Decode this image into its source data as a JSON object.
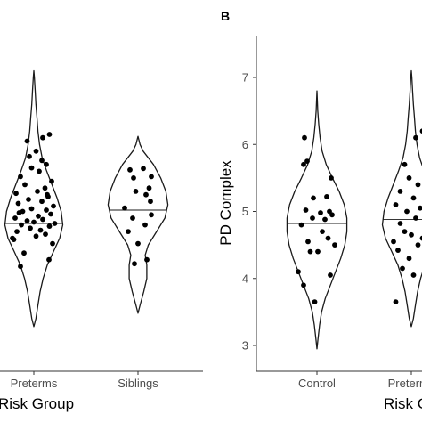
{
  "chart_data": [
    {
      "type": "violin",
      "panel_label": "",
      "xlabel": "Risk Group",
      "ylabel": "",
      "ylim": [
        2.7,
        7.6
      ],
      "categories": [
        "Preterms",
        "Siblings"
      ],
      "medians": [
        4.82,
        5.02
      ],
      "violins": [
        {
          "name": "Preterms",
          "density": [
            [
              3.28,
              0.0
            ],
            [
              3.4,
              0.04
            ],
            [
              3.6,
              0.08
            ],
            [
              3.8,
              0.12
            ],
            [
              4.0,
              0.18
            ],
            [
              4.2,
              0.26
            ],
            [
              4.4,
              0.38
            ],
            [
              4.6,
              0.5
            ],
            [
              4.8,
              0.56
            ],
            [
              5.0,
              0.53
            ],
            [
              5.2,
              0.45
            ],
            [
              5.4,
              0.35
            ],
            [
              5.6,
              0.25
            ],
            [
              5.8,
              0.16
            ],
            [
              6.0,
              0.11
            ],
            [
              6.2,
              0.08
            ],
            [
              6.4,
              0.06
            ],
            [
              6.6,
              0.04
            ],
            [
              6.8,
              0.025
            ],
            [
              7.0,
              0.01
            ],
            [
              7.1,
              0.0
            ]
          ]
        },
        {
          "name": "Siblings",
          "density": [
            [
              3.48,
              0.0
            ],
            [
              3.6,
              0.04
            ],
            [
              3.8,
              0.11
            ],
            [
              4.0,
              0.17
            ],
            [
              4.2,
              0.17
            ],
            [
              4.35,
              0.14
            ],
            [
              4.5,
              0.2
            ],
            [
              4.7,
              0.36
            ],
            [
              4.9,
              0.52
            ],
            [
              5.1,
              0.58
            ],
            [
              5.3,
              0.54
            ],
            [
              5.5,
              0.44
            ],
            [
              5.7,
              0.3
            ],
            [
              5.8,
              0.2
            ],
            [
              5.9,
              0.1
            ],
            [
              6.0,
              0.04
            ],
            [
              6.12,
              0.0
            ]
          ]
        }
      ],
      "points": [
        {
          "group": "Preterms",
          "values": [
            4.18,
            4.28,
            4.38,
            4.52,
            4.58,
            4.63,
            4.66,
            4.7,
            4.72,
            4.75,
            4.78,
            4.8,
            4.82,
            4.86,
            4.88,
            4.9,
            4.93,
            4.96,
            5.0,
            5.02,
            5.04,
            5.08,
            5.12,
            5.15,
            5.18,
            5.22,
            5.27,
            5.3,
            5.35,
            5.4,
            5.45,
            5.52,
            5.6,
            5.65,
            5.7,
            5.76,
            5.82,
            5.9,
            6.05,
            6.1,
            6.15,
            4.6,
            4.84,
            4.98,
            5.25
          ],
          "jitter": [
            -0.3,
            0.34,
            -0.22,
            0.42,
            -0.45,
            0.05,
            0.26,
            -0.38,
            0.15,
            -0.08,
            0.35,
            -0.28,
            0.47,
            -0.15,
            0.2,
            -0.42,
            0.1,
            0.38,
            -0.25,
            0.28,
            -0.05,
            0.44,
            -0.35,
            0.18,
            -0.12,
            0.32,
            -0.4,
            0.08,
            0.25,
            -0.2,
            0.4,
            -0.3,
            0.12,
            -0.05,
            0.28,
            0.18,
            -0.1,
            0.05,
            -0.15,
            0.2,
            0.35,
            -0.48,
            0.0,
            -0.33,
            0.3
          ]
        },
        {
          "group": "Siblings",
          "values": [
            4.22,
            4.28,
            4.52,
            4.7,
            4.8,
            4.9,
            4.95,
            5.05,
            5.15,
            5.25,
            5.3,
            5.35,
            5.5,
            5.52,
            5.62,
            5.64
          ],
          "jitter": [
            -0.08,
            0.2,
            0.0,
            -0.22,
            0.16,
            -0.12,
            0.3,
            -0.3,
            0.28,
            0.18,
            -0.05,
            0.25,
            -0.1,
            0.3,
            -0.18,
            0.12
          ]
        }
      ]
    },
    {
      "type": "violin",
      "panel_label": "B",
      "xlabel": "Risk G",
      "ylabel": "PD Complex",
      "ylim": [
        2.75,
        7.6
      ],
      "yticks": [
        3,
        4,
        5,
        6,
        7
      ],
      "categories": [
        "Control",
        "Preterms"
      ],
      "x_tick_labels": [
        "Control",
        "Preterms"
      ],
      "medians": [
        4.82,
        4.88
      ],
      "violins": [
        {
          "name": "Control",
          "density": [
            [
              2.95,
              0.0
            ],
            [
              3.1,
              0.02
            ],
            [
              3.3,
              0.05
            ],
            [
              3.5,
              0.09
            ],
            [
              3.7,
              0.16
            ],
            [
              3.9,
              0.26
            ],
            [
              4.1,
              0.36
            ],
            [
              4.3,
              0.46
            ],
            [
              4.5,
              0.54
            ],
            [
              4.7,
              0.58
            ],
            [
              4.9,
              0.58
            ],
            [
              5.1,
              0.53
            ],
            [
              5.3,
              0.43
            ],
            [
              5.5,
              0.3
            ],
            [
              5.7,
              0.18
            ],
            [
              5.9,
              0.1
            ],
            [
              6.1,
              0.06
            ],
            [
              6.3,
              0.035
            ],
            [
              6.5,
              0.015
            ],
            [
              6.8,
              0.0
            ]
          ]
        },
        {
          "name": "Preterms",
          "density": [
            [
              3.28,
              0.0
            ],
            [
              3.4,
              0.04
            ],
            [
              3.6,
              0.08
            ],
            [
              3.8,
              0.12
            ],
            [
              4.0,
              0.18
            ],
            [
              4.2,
              0.26
            ],
            [
              4.4,
              0.38
            ],
            [
              4.6,
              0.5
            ],
            [
              4.8,
              0.56
            ],
            [
              5.0,
              0.53
            ],
            [
              5.2,
              0.45
            ],
            [
              5.4,
              0.35
            ],
            [
              5.6,
              0.25
            ],
            [
              5.8,
              0.16
            ],
            [
              6.0,
              0.11
            ],
            [
              6.2,
              0.08
            ],
            [
              6.4,
              0.06
            ],
            [
              6.6,
              0.04
            ],
            [
              6.8,
              0.025
            ],
            [
              7.0,
              0.01
            ],
            [
              7.1,
              0.0
            ]
          ]
        }
      ],
      "points": [
        {
          "group": "Control",
          "values": [
            3.65,
            3.9,
            4.05,
            4.1,
            4.4,
            4.4,
            4.5,
            4.55,
            4.6,
            4.7,
            4.8,
            4.88,
            4.9,
            4.95,
            4.98,
            5.0,
            5.02,
            5.2,
            5.22,
            5.5,
            5.7,
            5.75,
            6.1
          ],
          "jitter": [
            -0.05,
            -0.3,
            0.3,
            -0.42,
            -0.15,
            0.02,
            0.4,
            -0.2,
            0.25,
            0.12,
            -0.35,
            0.18,
            -0.1,
            0.34,
            0.08,
            0.28,
            -0.25,
            -0.08,
            0.22,
            0.32,
            -0.3,
            -0.22,
            -0.28
          ]
        },
        {
          "group": "Preterms",
          "values": [
            3.65,
            4.05,
            4.15,
            4.2,
            4.3,
            4.35,
            4.42,
            4.5,
            4.55,
            4.6,
            4.65,
            4.7,
            4.78,
            4.82,
            4.9,
            4.96,
            5.0,
            5.05,
            5.1,
            5.2,
            5.25,
            5.3,
            5.4,
            5.5,
            5.6,
            5.7,
            6.1,
            6.2
          ],
          "jitter": [
            -0.35,
            0.05,
            -0.2,
            0.3,
            -0.05,
            0.4,
            -0.3,
            0.15,
            -0.4,
            0.25,
            0.0,
            -0.15,
            0.35,
            -0.25,
            0.1,
            0.3,
            -0.1,
            0.2,
            -0.35,
            0.05,
            0.4,
            -0.25,
            0.15,
            -0.05,
            0.3,
            -0.15,
            0.1,
            0.25
          ]
        }
      ]
    }
  ]
}
